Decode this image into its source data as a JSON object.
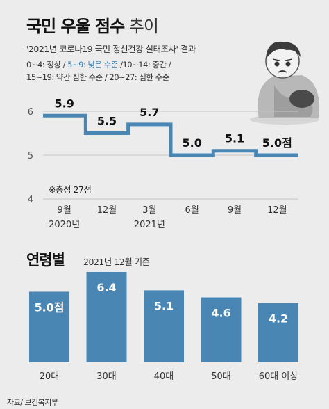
{
  "header": {
    "title_bold": "국민 우울 점수",
    "title_light": " 추이",
    "subtitle": "'2021년 코로나19 국민 정신건강 실태조사' 결과",
    "legend_line1_a": "0~4: 정상 / ",
    "legend_line1_hl": "5~9: 낮은 수준",
    "legend_line1_b": " /10~14: 중간 /",
    "legend_line2": "15~19: 약간 심한 수준 / 20~27: 심한 수준"
  },
  "colors": {
    "accent": "#4a86b4",
    "bar": "#4a86b4",
    "background": "#ececec"
  },
  "figure": {
    "icon": "worried-person-illustration"
  },
  "note": "※총점 27점",
  "age_section": {
    "title": "연령별",
    "subtitle": "2021년 12월 기준"
  },
  "source": "자료/ 보건복지부",
  "chart_data": [
    {
      "type": "line",
      "style": "step",
      "x": [
        "9월",
        "12월",
        "3월",
        "6월",
        "9월",
        "12월"
      ],
      "year_labels": [
        {
          "index": 0,
          "label": "2020년"
        },
        {
          "index": 2,
          "label": "2021년"
        }
      ],
      "values": [
        5.9,
        5.5,
        5.7,
        5.0,
        5.1,
        5.0
      ],
      "data_labels": [
        "5.9",
        "5.5",
        "5.7",
        "5.0",
        "5.1",
        "5.0점"
      ],
      "yticks": [
        4,
        5,
        6
      ],
      "ylim": [
        4,
        6
      ],
      "grid": true
    },
    {
      "type": "bar",
      "categories": [
        "20대",
        "30대",
        "40대",
        "50대",
        "60대 이상"
      ],
      "values": [
        5.0,
        6.4,
        5.1,
        4.6,
        4.2
      ],
      "data_labels": [
        "5.0점",
        "6.4",
        "5.1",
        "4.6",
        "4.2"
      ]
    }
  ]
}
